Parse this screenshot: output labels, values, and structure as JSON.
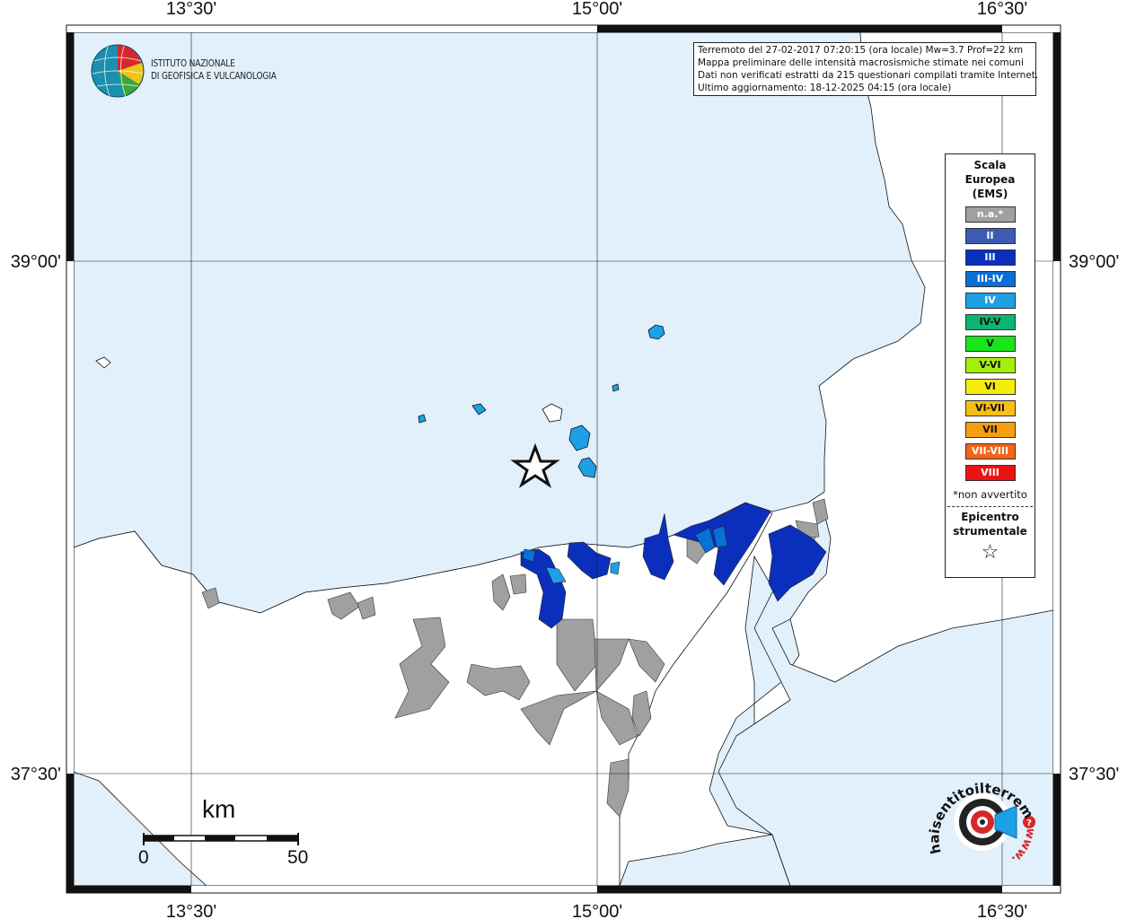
{
  "map": {
    "ticks": {
      "top": [
        "13°30'",
        "15°00'",
        "16°30'"
      ],
      "bottom": [
        "13°30'",
        "15°00'",
        "16°30'"
      ],
      "left": [
        "39°00'",
        "37°30'"
      ],
      "right": [
        "39°00'",
        "37°30'"
      ]
    },
    "colors": {
      "sea": "#e1f0fb",
      "land": "#ffffff",
      "na": "#a0a0a0",
      "II": "#3c5cb3",
      "III": "#0b2fbd",
      "III-IV": "#0a6fd6",
      "IV": "#1ea0e6"
    }
  },
  "info": {
    "line1": "Terremoto del 27-02-2017 07:20:15 (ora locale) Mw=3.7 Prof=22 km",
    "line2": "Mappa preliminare delle intensità macrosismiche stimate nei comuni",
    "line3": "Dati non verificati estratti da 215 questionari compilati tramite Internet.",
    "line4": "Ultimo aggiornamento: 18-12-2025 04:15 (ora locale)"
  },
  "logo": {
    "institute_line1": "ISTITUTO NAZIONALE",
    "institute_line2": "DI GEOFISICA E VULCANOLOGIA",
    "haisentito": "haisentitoilterremoto.it",
    "www": "www."
  },
  "legend": {
    "title1": "Scala",
    "title2": "Europea",
    "title3": "(EMS)",
    "items": [
      {
        "label": "n.a.*",
        "color": "#a0a0a0"
      },
      {
        "label": "II",
        "color": "#3c5cb3"
      },
      {
        "label": "III",
        "color": "#0b2fbd"
      },
      {
        "label": "III-IV",
        "color": "#0a6fd6"
      },
      {
        "label": "IV",
        "color": "#1ea0e6"
      },
      {
        "label": "IV-V",
        "color": "#0bb572"
      },
      {
        "label": "V",
        "color": "#19e619"
      },
      {
        "label": "V-VI",
        "color": "#a6ee0c"
      },
      {
        "label": "VI",
        "color": "#f5ec0c"
      },
      {
        "label": "VI-VII",
        "color": "#f7bf14"
      },
      {
        "label": "VII",
        "color": "#f79e10"
      },
      {
        "label": "VII-VIII",
        "color": "#f2651a"
      },
      {
        "label": "VIII",
        "color": "#ee1313"
      }
    ],
    "note": "*non avvertito",
    "epi1": "Epicentro",
    "epi2": "strumentale",
    "star": "☆"
  },
  "scale": {
    "unit": "km",
    "min": "0",
    "max": "50"
  }
}
